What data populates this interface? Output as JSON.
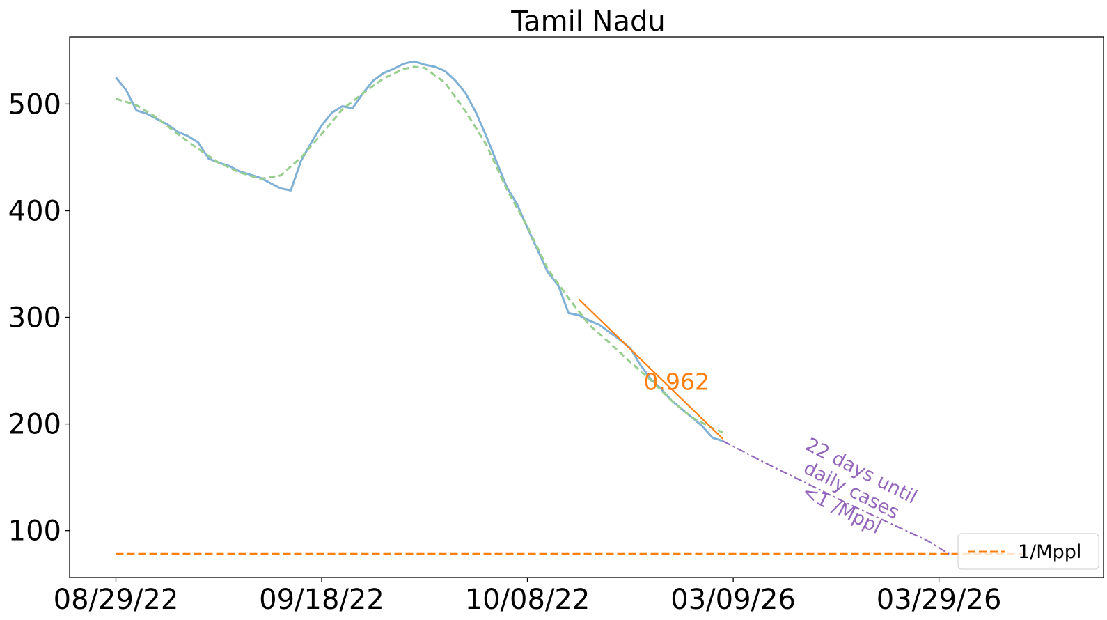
{
  "chart_data": {
    "type": "line",
    "title": "Tamil Nadu",
    "xlabel": "",
    "ylabel": "",
    "x_tick_labels": [
      "08/29/22",
      "09/18/22",
      "10/08/22",
      "03/09/26",
      "03/29/26"
    ],
    "y_ticks": [
      100,
      200,
      300,
      400,
      500
    ],
    "xlim": [
      -4.5,
      96
    ],
    "ylim": [
      56,
      563
    ],
    "grid": false,
    "legend_placement": "lower-right",
    "colors": {
      "observed": "#7fb0d5",
      "smoothed": "#98cf8f",
      "fit": "#ff7f0e",
      "projection": "#9467bd",
      "threshold": "#ff7f0e"
    },
    "series": [
      {
        "style": "solid",
        "x": [
          0,
          1,
          2,
          3,
          4,
          5,
          6,
          7,
          8,
          9,
          10,
          11,
          12,
          13,
          14,
          15,
          16,
          17,
          18,
          19,
          20,
          21,
          22,
          23,
          24,
          25,
          26,
          27,
          28,
          29,
          30,
          31,
          32,
          33,
          34,
          35,
          36,
          37,
          38,
          39,
          40,
          41,
          42,
          43,
          44,
          45,
          46,
          47,
          48,
          49,
          50,
          51,
          52,
          53,
          54,
          55,
          56,
          57,
          58,
          59
        ],
        "values": [
          525,
          513,
          494,
          491,
          486,
          481,
          474,
          470,
          464,
          449,
          445,
          442,
          437,
          434,
          431,
          426,
          421,
          419,
          447,
          464,
          480,
          492,
          498,
          496,
          510,
          522,
          529,
          533,
          538,
          540,
          537,
          535,
          531,
          522,
          510,
          492,
          470,
          446,
          422,
          406,
          384,
          363,
          342,
          330,
          304,
          302,
          297,
          293,
          286,
          279,
          271,
          255,
          242,
          233,
          222,
          214,
          206,
          198,
          187,
          184
        ]
      },
      {
        "style": "dashed",
        "x": [
          0,
          2,
          4,
          6,
          8,
          10,
          12,
          14,
          16,
          18,
          20,
          22,
          24,
          26,
          28,
          29,
          30,
          32,
          34,
          36,
          38,
          40,
          42,
          44,
          46,
          48,
          50,
          52,
          54,
          56,
          58,
          59
        ],
        "values": [
          505,
          499,
          487,
          472,
          458,
          445,
          436,
          430,
          433,
          450,
          472,
          495,
          510,
          524,
          533,
          535,
          534,
          520,
          493,
          462,
          420,
          385,
          345,
          318,
          293,
          276,
          258,
          241,
          222,
          206,
          196,
          192
        ]
      },
      {
        "style": "solid",
        "x": [
          45,
          59
        ],
        "values": [
          317,
          186
        ]
      },
      {
        "style": "dashdot",
        "x": [
          59,
          63,
          67,
          71,
          75,
          79,
          81
        ],
        "values": [
          184,
          164,
          145,
          126,
          108,
          90,
          78
        ]
      },
      {
        "name": "1/Mppl",
        "style": "dashed",
        "x": [
          0,
          88.5
        ],
        "values": [
          78,
          78
        ]
      }
    ],
    "annotations": [
      {
        "text": "0.962",
        "x": 54.5,
        "y": 232
      },
      {
        "lines": [
          "22 days until",
          "daily cases",
          "<1 /Mppl"
        ],
        "x": 71.5,
        "y": 138
      }
    ],
    "legend": [
      "1/Mppl"
    ]
  }
}
